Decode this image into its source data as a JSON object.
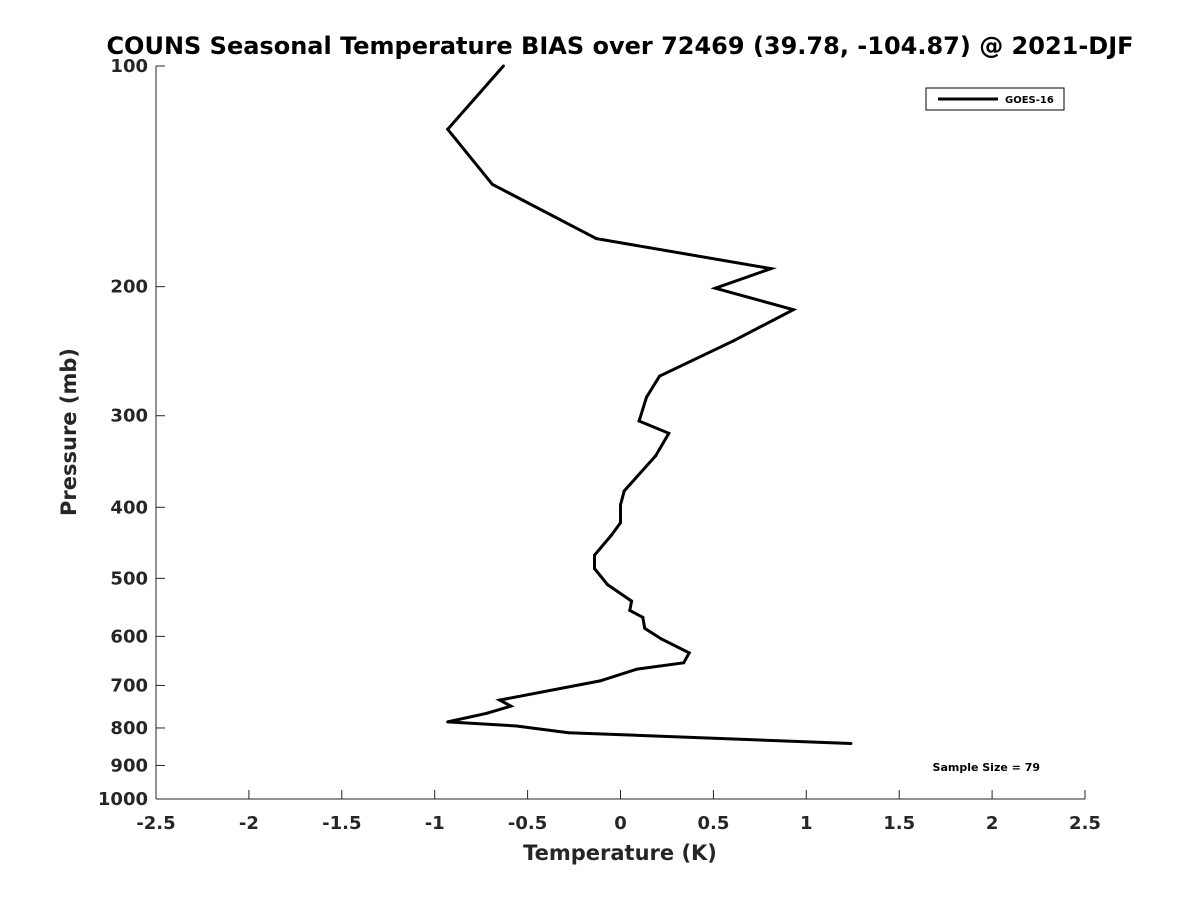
{
  "chart_data": {
    "type": "line",
    "title": "COUNS Seasonal Temperature BIAS over 72469 (39.78, -104.87) @ 2021-DJF",
    "xlabel": "Temperature (K)",
    "ylabel": "Pressure (mb)",
    "xlim": [
      -2.5,
      2.5
    ],
    "ylim": [
      100,
      1000
    ],
    "y_scale": "log",
    "y_reversed": true,
    "x_ticks": [
      "-2.5",
      "-2",
      "-1.5",
      "-1",
      "-0.5",
      "0",
      "0.5",
      "1",
      "1.5",
      "2",
      "2.5"
    ],
    "y_ticks": [
      "100",
      "200",
      "300",
      "400",
      "500",
      "600",
      "700",
      "800",
      "900",
      "1000"
    ],
    "grid": false,
    "legend": {
      "position": "top-right",
      "entries": [
        "GOES-16"
      ]
    },
    "annotation": "Sample Size = 79",
    "series": [
      {
        "name": "GOES-16",
        "color": "#000000",
        "x": [
          -0.63,
          -0.93,
          -0.69,
          -0.13,
          0.81,
          0.51,
          0.93,
          0.61,
          0.21,
          0.14,
          0.1,
          0.26,
          0.19,
          0.02,
          0.0,
          0.0,
          -0.05,
          -0.14,
          -0.14,
          -0.07,
          0.06,
          0.05,
          0.12,
          0.13,
          0.22,
          0.37,
          0.34,
          0.09,
          -0.11,
          -0.65,
          -0.59,
          -0.72,
          -0.93,
          -0.56,
          -0.28,
          1.24
        ],
        "y": [
          100,
          122,
          145,
          172,
          189,
          201,
          215,
          237,
          265,
          283,
          305,
          317,
          340,
          380,
          397,
          420,
          437,
          465,
          485,
          510,
          537,
          553,
          565,
          585,
          605,
          632,
          652,
          665,
          690,
          733,
          747,
          764,
          785,
          795,
          812,
          840
        ]
      }
    ]
  }
}
